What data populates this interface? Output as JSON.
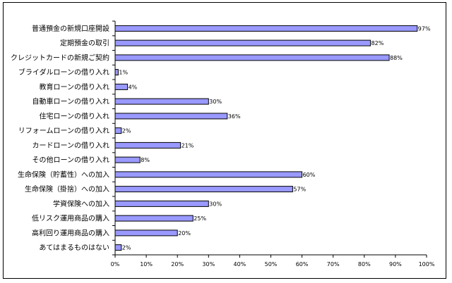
{
  "chart_data": {
    "type": "bar",
    "orientation": "horizontal",
    "categories": [
      "普通預金の新規口座開設",
      "定期預金の取引",
      "クレジットカードの新規ご契約",
      "ブライダルローンの借り入れ",
      "教育ローンの借り入れ",
      "自動車ローンの借り入れ",
      "住宅ローンの借り入れ",
      "リフォームローンの借り入れ",
      "カードローンの借り入れ",
      "その他ローンの借り入れ",
      "生命保険（貯蓄性）への加入",
      "生命保険（掛捨）への加入",
      "学資保険への加入",
      "低リスク運用商品の購入",
      "高利回り運用商品の購入",
      "あてはまるものはない"
    ],
    "values": [
      97,
      82,
      88,
      1,
      4,
      30,
      36,
      2,
      21,
      8,
      60,
      57,
      30,
      25,
      20,
      2
    ],
    "value_labels": [
      "97%",
      "82%",
      "88%",
      "1%",
      "4%",
      "30%",
      "36%",
      "2%",
      "21%",
      "8%",
      "60%",
      "57%",
      "30%",
      "25%",
      "20%",
      "2%"
    ],
    "xlim": [
      0,
      100
    ],
    "ticks": [
      0,
      10,
      20,
      30,
      40,
      50,
      60,
      70,
      80,
      90,
      100
    ],
    "tick_labels": [
      "0%",
      "10%",
      "20%",
      "30%",
      "40%",
      "50%",
      "60%",
      "70%",
      "80%",
      "90%",
      "100%"
    ],
    "grid": false,
    "legend": "none",
    "bar_color": "#9999ff",
    "bar_edge_color": "#000000"
  }
}
